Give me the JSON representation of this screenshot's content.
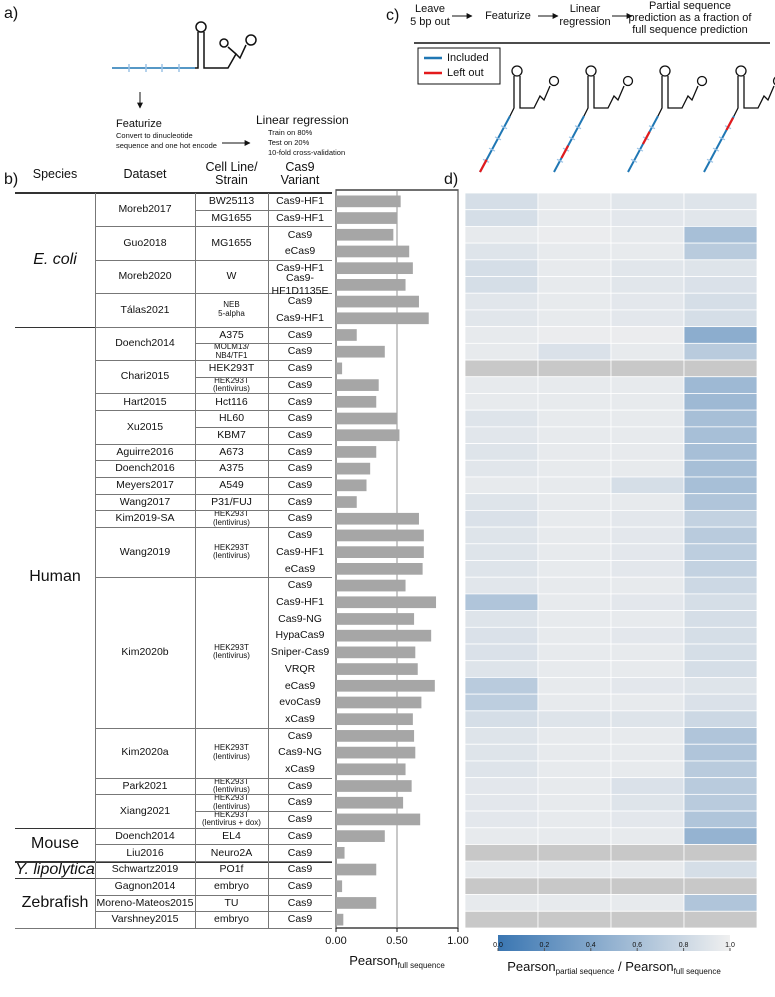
{
  "panel_labels": {
    "a": "a)",
    "b": "b)",
    "c": "c)",
    "d": "d)"
  },
  "panel_a": {
    "featurize": "Featurize",
    "featurize_note": [
      "Convert to dinucleotide",
      "sequence and one hot encode"
    ],
    "regression": "Linear regression",
    "regression_note": [
      "Train on 80%",
      "Test on 20%",
      "10-fold cross-validation"
    ]
  },
  "panel_c": {
    "steps": [
      [
        "Leave",
        "5 bp out"
      ],
      [
        "Featurize"
      ],
      [
        "Linear",
        "regression"
      ],
      [
        "Partial sequence",
        "prediction as a fraction of",
        "full sequence prediction"
      ]
    ],
    "legend": [
      {
        "name": "Included",
        "color": "#1f77b4"
      },
      {
        "name": "Left out",
        "color": "#e31a1c"
      }
    ]
  },
  "table": {
    "header": [
      "Species",
      "Dataset",
      "Cell Line/\nStrain",
      "Cas9\nVariant"
    ],
    "rows": [
      [
        "E. coli",
        "Moreb2017",
        "BW25113",
        "Cas9-HF1"
      ],
      [
        null,
        null,
        "MG1655",
        "Cas9-HF1"
      ],
      [
        null,
        "Guo2018",
        "MG1655",
        "Cas9"
      ],
      [
        null,
        null,
        null,
        "eCas9"
      ],
      [
        null,
        "Moreb2020",
        "W",
        "Cas9-HF1"
      ],
      [
        null,
        null,
        null,
        "Cas9-HF1D1135E"
      ],
      [
        null,
        "Tálas2021",
        "NEB\n5-alpha",
        "Cas9"
      ],
      [
        null,
        null,
        null,
        "Cas9-HF1"
      ],
      [
        "Human",
        "Doench2014",
        "A375",
        "Cas9"
      ],
      [
        null,
        null,
        "MOLM13/\nNB4/TF1",
        "Cas9"
      ],
      [
        null,
        "Chari2015",
        "HEK293T",
        "Cas9"
      ],
      [
        null,
        null,
        "HEK293T\n(lentivirus)",
        "Cas9"
      ],
      [
        null,
        "Hart2015",
        "Hct116",
        "Cas9"
      ],
      [
        null,
        "Xu2015",
        "HL60",
        "Cas9"
      ],
      [
        null,
        null,
        "KBM7",
        "Cas9"
      ],
      [
        null,
        "Aguirre2016",
        "A673",
        "Cas9"
      ],
      [
        null,
        "Doench2016",
        "A375",
        "Cas9"
      ],
      [
        null,
        "Meyers2017",
        "A549",
        "Cas9"
      ],
      [
        null,
        "Wang2017",
        "P31/FUJ",
        "Cas9"
      ],
      [
        null,
        "Kim2019-SA",
        "HEK293T\n(lentivirus)",
        "Cas9"
      ],
      [
        null,
        "Wang2019",
        "HEK293T\n(lentivirus)",
        "Cas9"
      ],
      [
        null,
        null,
        null,
        "Cas9-HF1"
      ],
      [
        null,
        null,
        null,
        "eCas9"
      ],
      [
        null,
        "Kim2020b",
        "HEK293T\n(lentivirus)",
        "Cas9"
      ],
      [
        null,
        null,
        null,
        "Cas9-HF1"
      ],
      [
        null,
        null,
        null,
        "Cas9-NG"
      ],
      [
        null,
        null,
        null,
        "HypaCas9"
      ],
      [
        null,
        null,
        null,
        "Sniper-Cas9"
      ],
      [
        null,
        null,
        null,
        "VRQR"
      ],
      [
        null,
        null,
        null,
        "eCas9"
      ],
      [
        null,
        null,
        null,
        "evoCas9"
      ],
      [
        null,
        null,
        null,
        "xCas9"
      ],
      [
        null,
        "Kim2020a",
        "HEK293T\n(lentivirus)",
        "Cas9"
      ],
      [
        null,
        null,
        null,
        "Cas9-NG"
      ],
      [
        null,
        null,
        null,
        "xCas9"
      ],
      [
        null,
        "Park2021",
        "HEK293T\n(lentivirus)",
        "Cas9"
      ],
      [
        null,
        "Xiang2021",
        "HEK293T\n(lentivirus)",
        "Cas9"
      ],
      [
        null,
        null,
        "HEK293T\n(lentivirus + dox)",
        "Cas9"
      ],
      [
        "Mouse",
        "Doench2014",
        "EL4",
        "Cas9"
      ],
      [
        null,
        "Liu2016",
        "Neuro2A",
        "Cas9"
      ],
      [
        "Y. lipolytica",
        "Schwartz2019",
        "PO1f",
        "Cas9"
      ],
      [
        "Zebrafish",
        "Gagnon2014",
        "embryo",
        "Cas9"
      ],
      [
        null,
        "Moreno-Mateos2015",
        "TU",
        "Cas9"
      ],
      [
        null,
        "Varshney2015",
        "embryo",
        "Cas9"
      ]
    ]
  },
  "chart_data": [
    {
      "type": "hbar",
      "color": "#a6a6a6",
      "values": [
        0.53,
        0.5,
        0.47,
        0.6,
        0.63,
        0.57,
        0.68,
        0.76,
        0.17,
        0.4,
        0.05,
        0.35,
        0.33,
        0.5,
        0.52,
        0.33,
        0.28,
        0.25,
        0.17,
        0.68,
        0.72,
        0.72,
        0.71,
        0.57,
        0.82,
        0.64,
        0.78,
        0.65,
        0.67,
        0.81,
        0.7,
        0.63,
        0.64,
        0.65,
        0.57,
        0.62,
        0.55,
        0.69,
        0.4,
        0.07,
        0.33,
        0.05,
        0.33,
        0.06
      ],
      "xlim": [
        0,
        1
      ],
      "xticks": [
        {
          "value": 0,
          "label": "0.00"
        },
        {
          "value": 0.5,
          "label": "0.50"
        },
        {
          "value": 1,
          "label": "1.00"
        }
      ],
      "grid": true,
      "xlabel": [
        "Pearson",
        "full sequence"
      ]
    },
    {
      "type": "heatmap",
      "values": [
        [
          0.85,
          0.95,
          0.92,
          0.9
        ],
        [
          0.85,
          0.95,
          0.93,
          0.92
        ],
        [
          0.95,
          0.97,
          0.95,
          0.6
        ],
        [
          0.9,
          0.95,
          0.95,
          0.7
        ],
        [
          0.85,
          0.95,
          0.92,
          0.9
        ],
        [
          0.85,
          0.95,
          0.92,
          0.88
        ],
        [
          0.92,
          0.95,
          0.93,
          0.85
        ],
        [
          0.92,
          0.95,
          0.93,
          0.85
        ],
        [
          0.95,
          0.97,
          0.97,
          0.45
        ],
        [
          0.95,
          0.88,
          0.95,
          0.7
        ],
        [
          null,
          null,
          null,
          null
        ],
        [
          0.95,
          0.95,
          0.95,
          0.55
        ],
        [
          0.95,
          0.95,
          0.95,
          0.55
        ],
        [
          0.9,
          0.95,
          0.95,
          0.6
        ],
        [
          0.92,
          0.95,
          0.95,
          0.6
        ],
        [
          0.9,
          0.95,
          0.95,
          0.6
        ],
        [
          0.92,
          0.95,
          0.95,
          0.6
        ],
        [
          0.95,
          0.95,
          0.85,
          0.6
        ],
        [
          0.9,
          0.95,
          0.95,
          0.65
        ],
        [
          0.88,
          0.95,
          0.93,
          0.75
        ],
        [
          0.9,
          0.95,
          0.93,
          0.7
        ],
        [
          0.9,
          0.95,
          0.93,
          0.72
        ],
        [
          0.9,
          0.95,
          0.93,
          0.75
        ],
        [
          0.92,
          0.95,
          0.95,
          0.8
        ],
        [
          0.65,
          0.95,
          0.93,
          0.85
        ],
        [
          0.9,
          0.95,
          0.95,
          0.85
        ],
        [
          0.88,
          0.95,
          0.93,
          0.85
        ],
        [
          0.88,
          0.95,
          0.95,
          0.85
        ],
        [
          0.9,
          0.95,
          0.95,
          0.85
        ],
        [
          0.7,
          0.95,
          0.93,
          0.9
        ],
        [
          0.72,
          0.95,
          0.95,
          0.88
        ],
        [
          0.85,
          0.9,
          0.9,
          0.8
        ],
        [
          0.9,
          0.95,
          0.95,
          0.65
        ],
        [
          0.9,
          0.95,
          0.95,
          0.65
        ],
        [
          0.9,
          0.95,
          0.95,
          0.7
        ],
        [
          0.93,
          0.95,
          0.88,
          0.7
        ],
        [
          0.93,
          0.95,
          0.9,
          0.7
        ],
        [
          0.93,
          0.95,
          0.93,
          0.65
        ],
        [
          0.95,
          0.95,
          0.95,
          0.5
        ],
        [
          null,
          null,
          null,
          null
        ],
        [
          0.95,
          0.95,
          0.95,
          0.85
        ],
        [
          null,
          null,
          null,
          null
        ],
        [
          0.95,
          0.95,
          0.95,
          0.65
        ],
        [
          null,
          null,
          null,
          null
        ]
      ],
      "clim": [
        0,
        1
      ],
      "colormap": [
        "#3a76b2",
        "#f0f0f0"
      ],
      "missing_color": "#c8c8c8",
      "colorbar_ticks": [
        {
          "value": 0,
          "label": "0.0"
        },
        {
          "value": 0.2,
          "label": "0.2"
        },
        {
          "value": 0.4,
          "label": "0.4"
        },
        {
          "value": 0.6,
          "label": "0.6"
        },
        {
          "value": 0.8,
          "label": "0.8"
        },
        {
          "value": 1,
          "label": "1.0"
        }
      ],
      "colorbar_label": [
        "Pearson",
        "partial sequence",
        " / Pearson",
        "full sequence"
      ]
    }
  ]
}
